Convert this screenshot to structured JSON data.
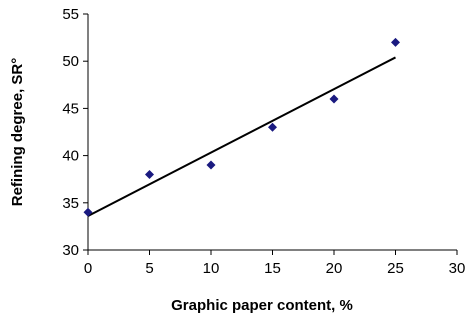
{
  "chart_data": {
    "type": "scatter",
    "title": "",
    "xlabel": "Graphic paper content, %",
    "ylabel": "Refining degree, SR°",
    "xlim": [
      0,
      30
    ],
    "ylim": [
      30,
      55
    ],
    "xticks": [
      0,
      5,
      10,
      15,
      20,
      25,
      30
    ],
    "yticks": [
      30,
      35,
      40,
      45,
      50,
      55
    ],
    "xtick_labels": [
      "0",
      "5",
      "10",
      "15",
      "20",
      "25",
      "30"
    ],
    "ytick_labels": [
      "30",
      "35",
      "40",
      "45",
      "50",
      "55"
    ],
    "grid": false,
    "series": [
      {
        "x": [
          0,
          5,
          10,
          15,
          20,
          25
        ],
        "y": [
          34,
          38,
          39,
          43,
          46,
          52
        ],
        "marker": "diamond",
        "color": "#1a1a80"
      }
    ],
    "trendline": {
      "type": "linear",
      "x": [
        0,
        25
      ],
      "y": [
        33.6,
        50.4
      ],
      "color": "#000000"
    }
  }
}
